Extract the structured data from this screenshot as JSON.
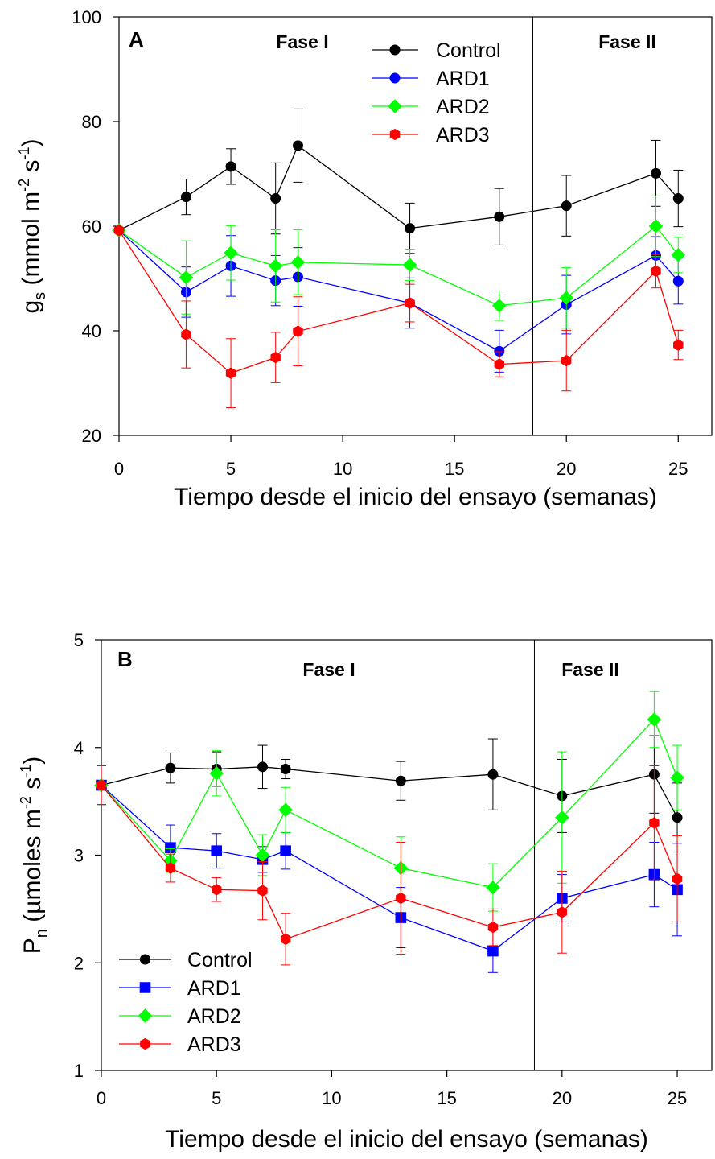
{
  "chart_data": [
    {
      "type": "line",
      "panel_label": "A",
      "phase_labels": [
        "Fase I",
        "Fase II"
      ],
      "phase_divider_x": 18.5,
      "xlabel": "Tiempo desde el inicio del ensayo (semanas)",
      "ylabel": {
        "base": "g",
        "sub": "s",
        "units": " (mmol m",
        "exp1": "-2",
        "mid": " s",
        "exp2": "-1",
        "end": ")"
      },
      "xlim": [
        0,
        26.5
      ],
      "ylim": [
        20,
        100
      ],
      "xticks": [
        0,
        5,
        10,
        15,
        20,
        25
      ],
      "yticks": [
        20,
        40,
        60,
        80,
        100
      ],
      "legend_position": "top-center",
      "series": [
        {
          "name": "Control",
          "color": "#000000",
          "marker": "circle",
          "x": [
            0,
            3,
            5,
            7,
            8,
            13,
            17,
            20,
            24,
            25
          ],
          "y": [
            59.2,
            65.6,
            71.4,
            65.3,
            75.4,
            59.6,
            61.8,
            63.9,
            70.1,
            65.3
          ],
          "err": [
            0,
            3.4,
            3.4,
            6.8,
            7.0,
            4.8,
            5.4,
            5.8,
            6.3,
            5.4
          ]
        },
        {
          "name": "ARD1",
          "color": "#0000ff",
          "marker": "circle",
          "x": [
            0,
            3,
            5,
            7,
            8,
            13,
            17,
            20,
            24,
            25
          ],
          "y": [
            59.2,
            47.4,
            52.4,
            49.6,
            50.3,
            45.3,
            36.1,
            45.0,
            54.4,
            49.5
          ],
          "err": [
            0,
            4.8,
            5.8,
            4.8,
            5.6,
            4.8,
            4.0,
            5.6,
            3.6,
            4.4
          ]
        },
        {
          "name": "ARD2",
          "color": "#00ff00",
          "marker": "diamond",
          "x": [
            0,
            3,
            5,
            7,
            8,
            13,
            17,
            20,
            24,
            25
          ],
          "y": [
            59.2,
            50.2,
            54.9,
            52.4,
            53.1,
            52.6,
            44.8,
            46.3,
            60.0,
            54.5
          ],
          "err": [
            0,
            7.0,
            5.2,
            6.9,
            6.2,
            3.0,
            2.8,
            5.8,
            5.8,
            3.4
          ]
        },
        {
          "name": "ARD3",
          "color": "#ff0000",
          "marker": "hexagon",
          "x": [
            0,
            3,
            5,
            7,
            8,
            13,
            17,
            20,
            24,
            25
          ],
          "y": [
            59.2,
            39.3,
            31.9,
            34.9,
            39.9,
            45.3,
            33.6,
            34.3,
            51.4,
            37.3
          ],
          "err": [
            0,
            6.4,
            6.6,
            4.8,
            6.6,
            3.6,
            2.4,
            5.8,
            3.2,
            2.8
          ]
        }
      ]
    },
    {
      "type": "line",
      "panel_label": "B",
      "phase_labels": [
        "Fase I",
        "Fase II"
      ],
      "phase_divider_x": 18.8,
      "xlabel": "Tiempo desde el inicio del ensayo (semanas)",
      "ylabel": {
        "base": "P",
        "sub": "n",
        "units": " (µmoles m",
        "exp1": "-2",
        "mid": " s",
        "exp2": "-1",
        "end": ")"
      },
      "xlim": [
        0,
        26.5
      ],
      "ylim": [
        1,
        5
      ],
      "xticks": [
        0,
        5,
        10,
        15,
        20,
        25
      ],
      "yticks": [
        1,
        2,
        3,
        4,
        5
      ],
      "legend_position": "bottom-left",
      "series": [
        {
          "name": "Control",
          "color": "#000000",
          "marker": "circle",
          "x": [
            0,
            3,
            5,
            7,
            8,
            13,
            17,
            20,
            24,
            25
          ],
          "y": [
            3.65,
            3.81,
            3.8,
            3.82,
            3.8,
            3.69,
            3.75,
            3.55,
            3.75,
            3.35
          ],
          "err": [
            0.18,
            0.14,
            0.16,
            0.2,
            0.09,
            0.18,
            0.33,
            0.34,
            0.36,
            0.32
          ]
        },
        {
          "name": "ARD1",
          "color": "#0000ff",
          "marker": "square",
          "x": [
            0,
            3,
            5,
            7,
            8,
            13,
            17,
            20,
            24,
            25
          ],
          "y": [
            3.65,
            3.07,
            3.04,
            2.96,
            3.04,
            2.42,
            2.11,
            2.6,
            2.82,
            2.68
          ],
          "err": [
            0.18,
            0.21,
            0.16,
            0.12,
            0.17,
            0.28,
            0.2,
            0.22,
            0.3,
            0.43
          ]
        },
        {
          "name": "ARD2",
          "color": "#00ff00",
          "marker": "diamond",
          "x": [
            0,
            3,
            5,
            7,
            8,
            13,
            17,
            20,
            24,
            25
          ],
          "y": [
            3.65,
            2.95,
            3.76,
            3.0,
            3.42,
            2.88,
            2.7,
            3.35,
            4.26,
            3.72
          ],
          "err": [
            0.18,
            0.11,
            0.21,
            0.19,
            0.21,
            0.29,
            0.22,
            0.61,
            0.26,
            0.3
          ]
        },
        {
          "name": "ARD3",
          "color": "#ff0000",
          "marker": "hexagon",
          "x": [
            0,
            3,
            5,
            7,
            8,
            13,
            17,
            20,
            24,
            25
          ],
          "y": [
            3.65,
            2.88,
            2.68,
            2.67,
            2.22,
            2.6,
            2.33,
            2.47,
            3.3,
            2.78
          ],
          "err": [
            0.18,
            0.13,
            0.11,
            0.27,
            0.24,
            0.52,
            0.17,
            0.38,
            0.53,
            0.4
          ]
        }
      ]
    }
  ]
}
